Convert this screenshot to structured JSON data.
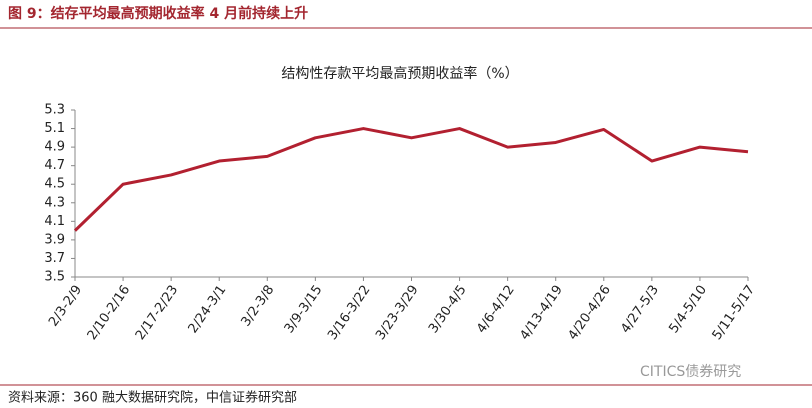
{
  "header": {
    "title": "图 9：结存平均最高预期收益率 4 月前持续上升"
  },
  "footer": {
    "source": "资料来源：360 融大数据研究院，中信证券研究部",
    "watermark": "CITICS债券研究"
  },
  "chart_data": {
    "type": "line",
    "title": "结构性存款平均最高预期收益率（%）",
    "categories": [
      "2/3-2/9",
      "2/10-2/16",
      "2/17-2/23",
      "2/24-3/1",
      "3/2-3/8",
      "3/9-3/15",
      "3/16-3/22",
      "3/23-3/29",
      "3/30-4/5",
      "4/6-4/12",
      "4/13-4/19",
      "4/20-4/26",
      "4/27-5/3",
      "5/4-5/10",
      "5/11-5/17"
    ],
    "values": [
      4.0,
      4.5,
      4.6,
      4.75,
      4.8,
      5.0,
      5.1,
      5.0,
      5.1,
      4.9,
      4.95,
      5.09,
      4.75,
      4.9,
      4.85
    ],
    "color": "#b22030",
    "ylim": [
      3.5,
      5.3
    ],
    "yticks": [
      3.5,
      3.7,
      3.9,
      4.1,
      4.3,
      4.5,
      4.7,
      4.9,
      5.1,
      5.3
    ],
    "grid": false
  }
}
